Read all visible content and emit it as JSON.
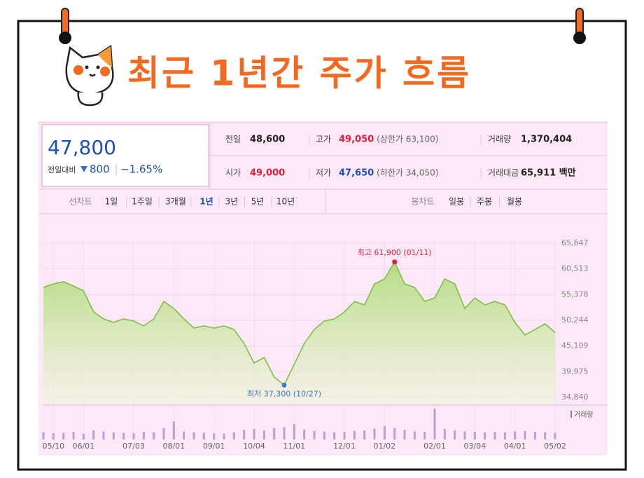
{
  "header": {
    "title": "최근 1년간 주가 흐름"
  },
  "quote": {
    "price": "47,800",
    "change_label": "전일대비",
    "change": "800",
    "change_rate": "−1.65%",
    "stats": [
      {
        "label": "전일",
        "value": "48,600"
      },
      {
        "label": "고가",
        "value": "49,050",
        "sub": "(상한가 63,100)"
      },
      {
        "label": "거래량",
        "value": "1,370,404"
      },
      {
        "label": "시가",
        "value": "49,000"
      },
      {
        "label": "저가",
        "value": "47,650",
        "sub": "(하한가 34,050)"
      },
      {
        "label": "거래대금",
        "value": "65,911 백만"
      }
    ]
  },
  "tabs": {
    "line_label": "선차트",
    "line_periods": [
      "1일",
      "1주일",
      "3개월",
      "1년",
      "3년",
      "5년",
      "10년"
    ],
    "selected": "1년",
    "candle_label": "봉차트",
    "candle_periods": [
      "일봉",
      "주봉",
      "월봉"
    ]
  },
  "chart_data": [
    {
      "type": "area",
      "categories": [
        null,
        "05/10",
        null,
        null,
        "06/01",
        null,
        null,
        null,
        null,
        "07/03",
        null,
        null,
        null,
        "08/01",
        null,
        null,
        null,
        "09/01",
        null,
        null,
        null,
        "10/04",
        null,
        null,
        null,
        "11/01",
        null,
        null,
        null,
        null,
        "12/01",
        null,
        null,
        null,
        "01/02",
        null,
        null,
        null,
        null,
        "02/01",
        null,
        null,
        null,
        "03/04",
        null,
        null,
        null,
        "04/01",
        null,
        null,
        null,
        "05/02"
      ],
      "values": [
        56820,
        57520,
        57940,
        57100,
        56120,
        51920,
        50520,
        49820,
        50520,
        50100,
        49120,
        50520,
        54020,
        52620,
        50520,
        48700,
        49120,
        48700,
        49120,
        48420,
        45620,
        41700,
        42820,
        38900,
        37300,
        41420,
        45620,
        48420,
        50100,
        50520,
        51920,
        54020,
        53320,
        57520,
        58500,
        61900,
        57520,
        56820,
        54020,
        54720,
        58500,
        57520,
        52620,
        54720,
        53320,
        54020,
        53320,
        49820,
        47300,
        48420,
        49540,
        47800
      ],
      "color": "#7cc242",
      "ylim": [
        34840,
        65647
      ],
      "yticks": [
        {
          "value": 34840,
          "label": "34,840"
        },
        {
          "value": 39975,
          "label": "39,975"
        },
        {
          "value": 45109,
          "label": "45,109"
        },
        {
          "value": 50244,
          "label": "50,244"
        },
        {
          "value": 55378,
          "label": "55,378"
        },
        {
          "value": 60513,
          "label": "60,513"
        },
        {
          "value": 65647,
          "label": "65,647"
        }
      ],
      "grid": true,
      "annotations": [
        {
          "text": "최고 61,900 (01/11)",
          "value": 61900,
          "color": "#e0203a",
          "side": "above"
        },
        {
          "text": "최저 37,300 (10/27)",
          "value": 37300,
          "color": "#3a78c8",
          "side": "below"
        }
      ]
    },
    {
      "type": "bar",
      "title": "거래량",
      "color": "#b7a0d8",
      "values": [
        1500000,
        1300000,
        1400000,
        1600000,
        1200000,
        1900000,
        1700000,
        1500000,
        1400000,
        1300000,
        1600000,
        1500000,
        2400000,
        3800000,
        1700000,
        1500000,
        1400000,
        1300000,
        1200000,
        1500000,
        2000000,
        2200000,
        1900000,
        2400000,
        2600000,
        3200000,
        2100000,
        1800000,
        1700000,
        1500000,
        1600000,
        1800000,
        1900000,
        2300000,
        2800000,
        2400000,
        2000000,
        1700000,
        1600000,
        6500000,
        2200000,
        1900000,
        1700000,
        1600000,
        1500000,
        1600000,
        1500000,
        1700000,
        1800000,
        1600000,
        1500000,
        1370404
      ]
    }
  ]
}
